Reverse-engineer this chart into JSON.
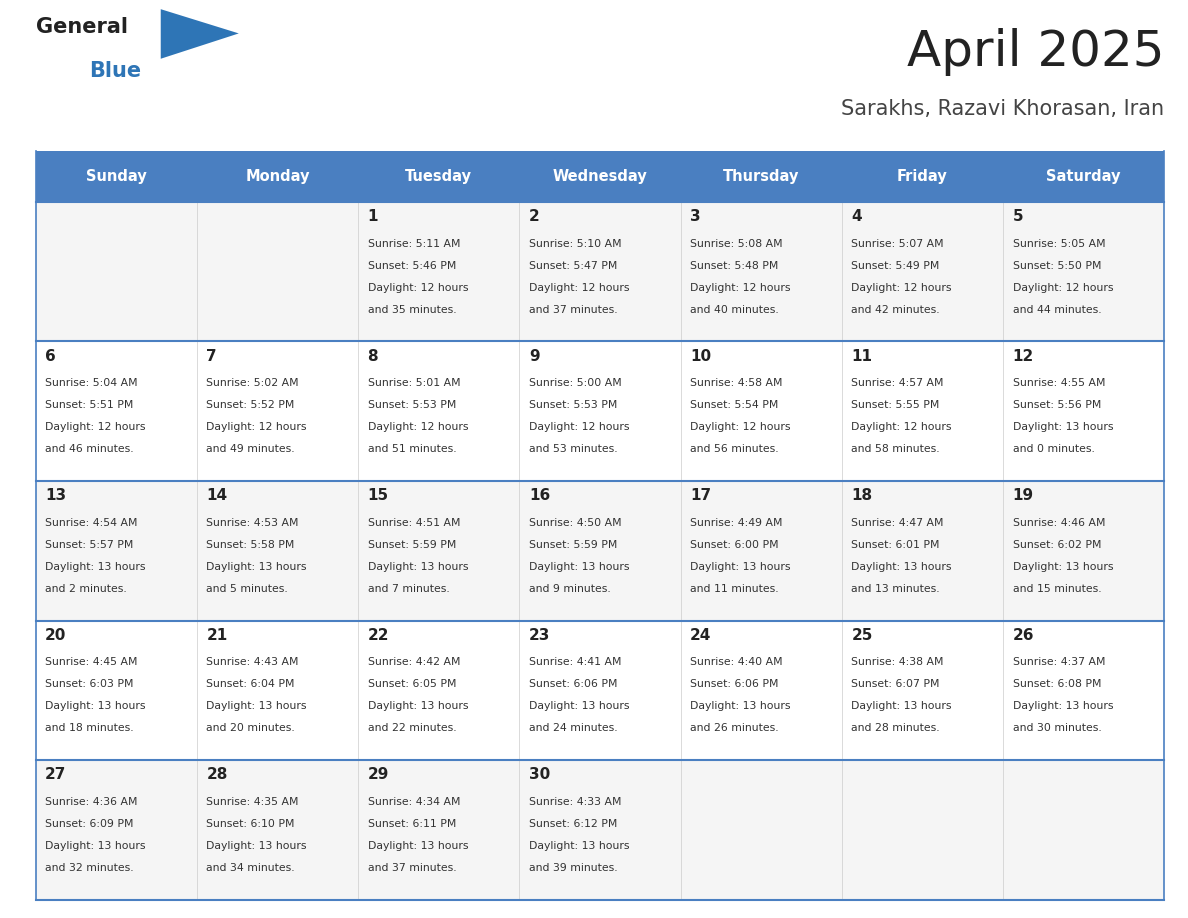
{
  "title": "April 2025",
  "subtitle": "Sarakhs, Razavi Khorasan, Iran",
  "days_of_week": [
    "Sunday",
    "Monday",
    "Tuesday",
    "Wednesday",
    "Thursday",
    "Friday",
    "Saturday"
  ],
  "header_bg": "#4A7FC1",
  "header_text": "#FFFFFF",
  "row_bg_light": "#F5F5F5",
  "row_bg_white": "#FFFFFF",
  "cell_text_color": "#333333",
  "day_num_color": "#222222",
  "divider_color": "#4A7FC1",
  "title_color": "#222222",
  "subtitle_color": "#444444",
  "logo_general_color": "#222222",
  "logo_blue_color": "#2E75B6",
  "calendar_data": [
    [
      {
        "day": null,
        "info": null
      },
      {
        "day": null,
        "info": null
      },
      {
        "day": 1,
        "info": "Sunrise: 5:11 AM\nSunset: 5:46 PM\nDaylight: 12 hours\nand 35 minutes."
      },
      {
        "day": 2,
        "info": "Sunrise: 5:10 AM\nSunset: 5:47 PM\nDaylight: 12 hours\nand 37 minutes."
      },
      {
        "day": 3,
        "info": "Sunrise: 5:08 AM\nSunset: 5:48 PM\nDaylight: 12 hours\nand 40 minutes."
      },
      {
        "day": 4,
        "info": "Sunrise: 5:07 AM\nSunset: 5:49 PM\nDaylight: 12 hours\nand 42 minutes."
      },
      {
        "day": 5,
        "info": "Sunrise: 5:05 AM\nSunset: 5:50 PM\nDaylight: 12 hours\nand 44 minutes."
      }
    ],
    [
      {
        "day": 6,
        "info": "Sunrise: 5:04 AM\nSunset: 5:51 PM\nDaylight: 12 hours\nand 46 minutes."
      },
      {
        "day": 7,
        "info": "Sunrise: 5:02 AM\nSunset: 5:52 PM\nDaylight: 12 hours\nand 49 minutes."
      },
      {
        "day": 8,
        "info": "Sunrise: 5:01 AM\nSunset: 5:53 PM\nDaylight: 12 hours\nand 51 minutes."
      },
      {
        "day": 9,
        "info": "Sunrise: 5:00 AM\nSunset: 5:53 PM\nDaylight: 12 hours\nand 53 minutes."
      },
      {
        "day": 10,
        "info": "Sunrise: 4:58 AM\nSunset: 5:54 PM\nDaylight: 12 hours\nand 56 minutes."
      },
      {
        "day": 11,
        "info": "Sunrise: 4:57 AM\nSunset: 5:55 PM\nDaylight: 12 hours\nand 58 minutes."
      },
      {
        "day": 12,
        "info": "Sunrise: 4:55 AM\nSunset: 5:56 PM\nDaylight: 13 hours\nand 0 minutes."
      }
    ],
    [
      {
        "day": 13,
        "info": "Sunrise: 4:54 AM\nSunset: 5:57 PM\nDaylight: 13 hours\nand 2 minutes."
      },
      {
        "day": 14,
        "info": "Sunrise: 4:53 AM\nSunset: 5:58 PM\nDaylight: 13 hours\nand 5 minutes."
      },
      {
        "day": 15,
        "info": "Sunrise: 4:51 AM\nSunset: 5:59 PM\nDaylight: 13 hours\nand 7 minutes."
      },
      {
        "day": 16,
        "info": "Sunrise: 4:50 AM\nSunset: 5:59 PM\nDaylight: 13 hours\nand 9 minutes."
      },
      {
        "day": 17,
        "info": "Sunrise: 4:49 AM\nSunset: 6:00 PM\nDaylight: 13 hours\nand 11 minutes."
      },
      {
        "day": 18,
        "info": "Sunrise: 4:47 AM\nSunset: 6:01 PM\nDaylight: 13 hours\nand 13 minutes."
      },
      {
        "day": 19,
        "info": "Sunrise: 4:46 AM\nSunset: 6:02 PM\nDaylight: 13 hours\nand 15 minutes."
      }
    ],
    [
      {
        "day": 20,
        "info": "Sunrise: 4:45 AM\nSunset: 6:03 PM\nDaylight: 13 hours\nand 18 minutes."
      },
      {
        "day": 21,
        "info": "Sunrise: 4:43 AM\nSunset: 6:04 PM\nDaylight: 13 hours\nand 20 minutes."
      },
      {
        "day": 22,
        "info": "Sunrise: 4:42 AM\nSunset: 6:05 PM\nDaylight: 13 hours\nand 22 minutes."
      },
      {
        "day": 23,
        "info": "Sunrise: 4:41 AM\nSunset: 6:06 PM\nDaylight: 13 hours\nand 24 minutes."
      },
      {
        "day": 24,
        "info": "Sunrise: 4:40 AM\nSunset: 6:06 PM\nDaylight: 13 hours\nand 26 minutes."
      },
      {
        "day": 25,
        "info": "Sunrise: 4:38 AM\nSunset: 6:07 PM\nDaylight: 13 hours\nand 28 minutes."
      },
      {
        "day": 26,
        "info": "Sunrise: 4:37 AM\nSunset: 6:08 PM\nDaylight: 13 hours\nand 30 minutes."
      }
    ],
    [
      {
        "day": 27,
        "info": "Sunrise: 4:36 AM\nSunset: 6:09 PM\nDaylight: 13 hours\nand 32 minutes."
      },
      {
        "day": 28,
        "info": "Sunrise: 4:35 AM\nSunset: 6:10 PM\nDaylight: 13 hours\nand 34 minutes."
      },
      {
        "day": 29,
        "info": "Sunrise: 4:34 AM\nSunset: 6:11 PM\nDaylight: 13 hours\nand 37 minutes."
      },
      {
        "day": 30,
        "info": "Sunrise: 4:33 AM\nSunset: 6:12 PM\nDaylight: 13 hours\nand 39 minutes."
      },
      {
        "day": null,
        "info": null
      },
      {
        "day": null,
        "info": null
      },
      {
        "day": null,
        "info": null
      }
    ]
  ]
}
